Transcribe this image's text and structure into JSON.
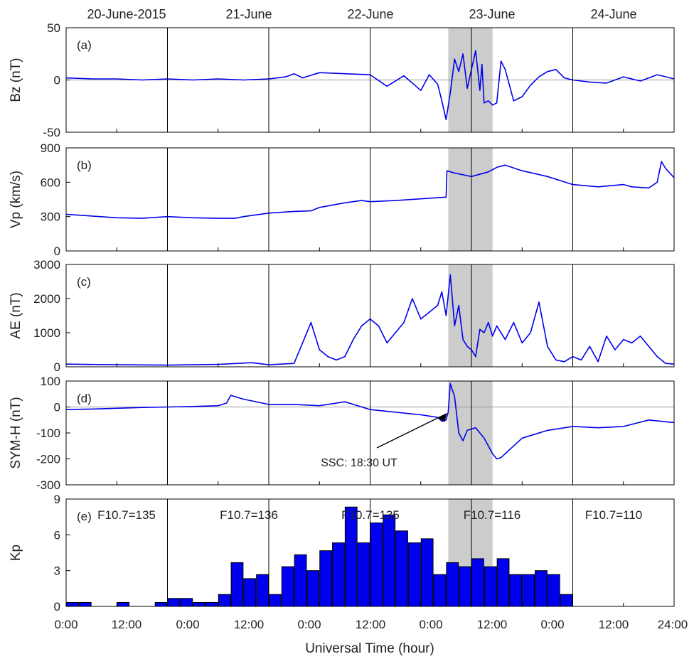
{
  "figure": {
    "day_labels": [
      "20-June-2015",
      "21-June",
      "22-June",
      "23-June",
      "24-June"
    ],
    "xlabel": "Universal Time (hour)",
    "x_ticks": [
      "0:00",
      "12:00",
      "0:00",
      "12:00",
      "0:00",
      "12:00",
      "0:00",
      "12:00",
      "0:00",
      "12:00",
      "24:00"
    ],
    "annotation": "SSC: 18:30 UT",
    "shade_start_hour": 90.5,
    "shade_end_hour": 101,
    "colors": {
      "line": "#0000ee",
      "bar": "#0000ee",
      "shade": "#cccccc",
      "zero_line": "#999999"
    }
  },
  "chart_data": [
    {
      "type": "line",
      "panel": "(a)",
      "ylabel": "Bz (nT)",
      "ylim": [
        -50,
        50
      ],
      "yticks": [
        "50",
        "0",
        "-50"
      ],
      "zero_line": true,
      "x": [
        0,
        6,
        12,
        18,
        24,
        30,
        36,
        42,
        48,
        52,
        54,
        56,
        60,
        66,
        72,
        76,
        80,
        84,
        86,
        88,
        89,
        90,
        91,
        92,
        93,
        94,
        95,
        96,
        97,
        98,
        98.5,
        99,
        100,
        101,
        102,
        103,
        104,
        106,
        108,
        110,
        112,
        114,
        116,
        118,
        120,
        124,
        128,
        132,
        136,
        140,
        144
      ],
      "y": [
        2,
        1,
        1,
        0,
        1,
        0,
        1,
        0,
        1,
        3,
        6,
        2,
        7,
        6,
        5,
        -6,
        4,
        -10,
        5,
        -4,
        -20,
        -38,
        -12,
        20,
        8,
        25,
        -8,
        10,
        28,
        -10,
        15,
        -22,
        -20,
        -24,
        -22,
        18,
        10,
        -20,
        -16,
        -5,
        3,
        8,
        10,
        2,
        0,
        -2,
        -3,
        3,
        -1,
        5,
        1
      ]
    },
    {
      "type": "line",
      "panel": "(b)",
      "ylabel": "Vp (km/s)",
      "ylim": [
        0,
        900
      ],
      "yticks": [
        "900",
        "600",
        "300",
        "0"
      ],
      "x": [
        0,
        4,
        8,
        12,
        18,
        24,
        30,
        36,
        40,
        42,
        48,
        54,
        58,
        60,
        66,
        70,
        72,
        78,
        84,
        88,
        90,
        90.2,
        92,
        96,
        100,
        102,
        104,
        108,
        114,
        120,
        126,
        132,
        134,
        138,
        140,
        141,
        142,
        144
      ],
      "y": [
        320,
        310,
        300,
        290,
        285,
        300,
        290,
        285,
        285,
        300,
        330,
        345,
        350,
        380,
        420,
        440,
        430,
        440,
        455,
        465,
        470,
        700,
        680,
        650,
        690,
        730,
        750,
        700,
        650,
        580,
        560,
        580,
        560,
        550,
        600,
        780,
        720,
        640
      ]
    },
    {
      "type": "line",
      "panel": "(c)",
      "ylabel": "AE (nT)",
      "ylim": [
        0,
        3000
      ],
      "yticks": [
        "3000",
        "2000",
        "1000",
        "0"
      ],
      "x": [
        0,
        12,
        24,
        36,
        44,
        48,
        54,
        56,
        58,
        59,
        60,
        62,
        64,
        66,
        68,
        70,
        72,
        74,
        76,
        80,
        82,
        84,
        86,
        88,
        89,
        90,
        91,
        92,
        93,
        94,
        95,
        96,
        97,
        98,
        99,
        100,
        101,
        102,
        104,
        106,
        108,
        110,
        112,
        114,
        116,
        118,
        120,
        122,
        124,
        126,
        128,
        130,
        132,
        134,
        136,
        138,
        140,
        142,
        144
      ],
      "y": [
        80,
        60,
        50,
        70,
        120,
        60,
        100,
        700,
        1300,
        900,
        500,
        300,
        200,
        300,
        800,
        1200,
        1400,
        1200,
        700,
        1300,
        2000,
        1400,
        1600,
        1800,
        2200,
        1500,
        2700,
        1200,
        1800,
        800,
        600,
        500,
        300,
        1100,
        1000,
        1300,
        900,
        1200,
        800,
        1300,
        700,
        1000,
        1900,
        600,
        200,
        150,
        300,
        200,
        600,
        150,
        900,
        500,
        800,
        700,
        900,
        600,
        300,
        100,
        80
      ]
    },
    {
      "type": "line",
      "panel": "(d)",
      "ylabel": "SYM-H (nT)",
      "ylim": [
        -300,
        100
      ],
      "yticks": [
        "100",
        "0",
        "-100",
        "-200",
        "-300"
      ],
      "zero_line": true,
      "x": [
        0,
        6,
        12,
        18,
        24,
        30,
        36,
        38,
        39,
        42,
        48,
        54,
        60,
        66,
        72,
        78,
        84,
        88,
        89,
        90,
        90.5,
        91,
        92,
        93,
        94,
        95,
        96,
        97,
        98,
        99,
        100,
        101,
        102,
        103,
        104,
        108,
        114,
        120,
        126,
        132,
        138,
        144
      ],
      "y": [
        -10,
        -8,
        -5,
        -2,
        0,
        2,
        5,
        15,
        45,
        30,
        10,
        10,
        5,
        20,
        -10,
        -20,
        -30,
        -40,
        -55,
        -50,
        -20,
        90,
        40,
        -100,
        -130,
        -90,
        -85,
        -80,
        -100,
        -120,
        -150,
        -180,
        -200,
        -195,
        -180,
        -120,
        -90,
        -75,
        -80,
        -75,
        -50,
        -60
      ]
    },
    {
      "type": "bar",
      "panel": "(e)",
      "ylabel": "Kp",
      "ylim": [
        0,
        9
      ],
      "yticks": [
        "9",
        "6",
        "3",
        "0"
      ],
      "bin_hours": 3,
      "values": [
        0.33,
        0.33,
        0,
        0,
        0.33,
        0,
        0,
        0.33,
        0.67,
        0.67,
        0.33,
        0.33,
        1,
        3.67,
        2.33,
        2.67,
        1,
        3.33,
        4.33,
        3,
        4.67,
        5.33,
        8.33,
        5.33,
        7,
        7.67,
        6.33,
        5.33,
        5.67,
        2.67,
        3.67,
        3.33,
        4,
        3.33,
        4,
        2.67,
        2.67,
        3,
        2.67,
        1
      ],
      "annotations": [
        "F10.7=135",
        "F10.7=136",
        "F10.7=135",
        "F10.7=116",
        "F10.7=110"
      ]
    }
  ]
}
